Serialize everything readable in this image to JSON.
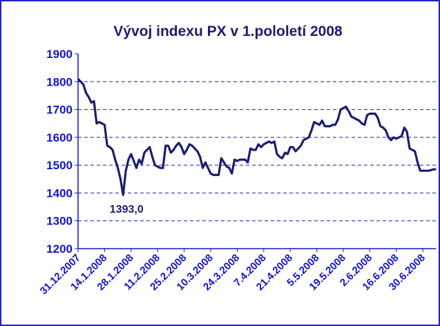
{
  "chart_data": {
    "type": "line",
    "title": "Vývoj indexu PX v 1.pololetí 2008",
    "categories": [
      "31.12.2007",
      null,
      null,
      null,
      null,
      null,
      null,
      null,
      null,
      null,
      "14.1.2008",
      null,
      null,
      null,
      null,
      null,
      null,
      null,
      null,
      null,
      "28.1.2008",
      null,
      null,
      null,
      null,
      null,
      null,
      null,
      null,
      null,
      "11.2.2008",
      null,
      null,
      null,
      null,
      null,
      null,
      null,
      null,
      null,
      "25.2.2008",
      null,
      null,
      null,
      null,
      null,
      null,
      null,
      null,
      null,
      "10.3.2008",
      null,
      null,
      null,
      null,
      null,
      null,
      null,
      null,
      null,
      "24.3.2008",
      null,
      null,
      null,
      null,
      null,
      null,
      null,
      null,
      null,
      "7.4.2008",
      null,
      null,
      null,
      null,
      null,
      null,
      null,
      null,
      null,
      "21.4.2008",
      null,
      null,
      null,
      null,
      null,
      null,
      null,
      null,
      null,
      "5.5.2008",
      null,
      null,
      null,
      null,
      null,
      null,
      null,
      null,
      null,
      "19.5.2008",
      null,
      null,
      null,
      null,
      null,
      null,
      null,
      null,
      null,
      "2.6.2008",
      null,
      null,
      null,
      null,
      null,
      null,
      null,
      null,
      null,
      "16.6.2008",
      null,
      null,
      null,
      null,
      null,
      null,
      null,
      null,
      null,
      "30.6.2008",
      null,
      null,
      null,
      null,
      null
    ],
    "series": [
      {
        "name": "PX",
        "color": "#1c1c70",
        "values": [
          1810,
          1800,
          1790,
          1760,
          1745,
          1725,
          1730,
          1650,
          1655,
          1650,
          1645,
          1570,
          1565,
          1555,
          1520,
          1490,
          1450,
          1393,
          1480,
          1520,
          1540,
          1515,
          1490,
          1520,
          1505,
          1545,
          1555,
          1565,
          1530,
          1500,
          1495,
          1490,
          1490,
          1570,
          1570,
          1545,
          1555,
          1570,
          1580,
          1565,
          1540,
          1555,
          1575,
          1570,
          1560,
          1550,
          1530,
          1490,
          1510,
          1490,
          1470,
          1465,
          1465,
          1465,
          1525,
          1510,
          1495,
          1490,
          1470,
          1520,
          1515,
          1520,
          1520,
          1520,
          1510,
          1560,
          1555,
          1555,
          1575,
          1565,
          1575,
          1580,
          1585,
          1580,
          1585,
          1540,
          1530,
          1525,
          1545,
          1540,
          1565,
          1565,
          1550,
          1560,
          1570,
          1590,
          1595,
          1600,
          1625,
          1655,
          1650,
          1645,
          1660,
          1640,
          1640,
          1640,
          1645,
          1645,
          1665,
          1700,
          1705,
          1710,
          1695,
          1675,
          1670,
          1665,
          1660,
          1650,
          1645,
          1680,
          1685,
          1685,
          1685,
          1670,
          1640,
          1635,
          1625,
          1600,
          1590,
          1600,
          1595,
          1600,
          1605,
          1635,
          1620,
          1560,
          1555,
          1550,
          1510,
          1480,
          1480,
          1480,
          1480,
          1482,
          1485,
          1485
        ],
        "value_labels": [
          null,
          null,
          null,
          null,
          null,
          null,
          null,
          null,
          null,
          null,
          null,
          null,
          null,
          null,
          null,
          null,
          null,
          "1393,0",
          null,
          null,
          null,
          null,
          null,
          null,
          null,
          null,
          null,
          null,
          null,
          null,
          null,
          null,
          null,
          null,
          null,
          null,
          null,
          null,
          null,
          null,
          null,
          null,
          null,
          null,
          null,
          null,
          null,
          null,
          null,
          null,
          null,
          null,
          null,
          null,
          null,
          null,
          null,
          null,
          null,
          null,
          null,
          null,
          null,
          null,
          null,
          null,
          null,
          null,
          null,
          null,
          null,
          null,
          null,
          null,
          null,
          null,
          null,
          null,
          null,
          null,
          null,
          null,
          null,
          null,
          null,
          null,
          null,
          null,
          null,
          null,
          null,
          null,
          null,
          null,
          null,
          null,
          null,
          null,
          null,
          null,
          null,
          null,
          null,
          null,
          null,
          null,
          null,
          null,
          null,
          null,
          null,
          null,
          null,
          null,
          null,
          null,
          null,
          null,
          null,
          null,
          null,
          null,
          null,
          null,
          null,
          null,
          null,
          null,
          null,
          null,
          null,
          null,
          null,
          null,
          null,
          null
        ]
      }
    ],
    "ylim": [
      1200,
      1900
    ],
    "yticks": [
      1200,
      1300,
      1400,
      1500,
      1600,
      1700,
      1800,
      1900
    ],
    "grid": true
  }
}
